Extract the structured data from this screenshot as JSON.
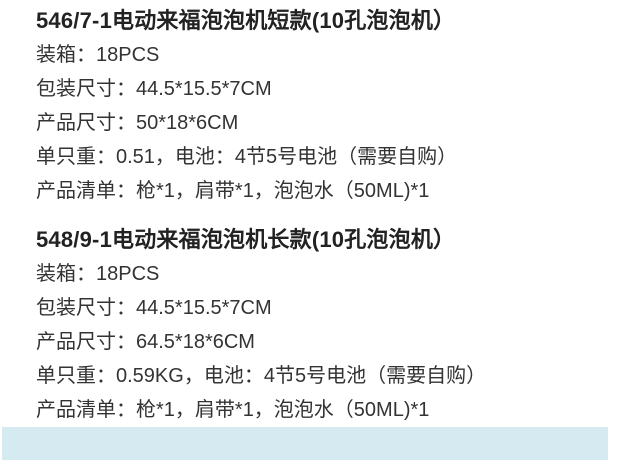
{
  "page": {
    "background_color": "#ffffff",
    "text_color": "#333333",
    "title_color": "#222222",
    "highlight_bar_color": "#d5ebf1"
  },
  "styles": {
    "bar": "background-color:#d5ebf1"
  },
  "products": [
    {
      "title": "546/7-1电动来福泡泡机短款(10孔泡泡机）",
      "specs": [
        "装箱：18PCS",
        "包装尺寸：44.5*15.5*7CM",
        "产品尺寸：50*18*6CM",
        "单只重：0.51，电池：4节5号电池（需要自购）",
        "产品清单：枪*1，肩带*1，泡泡水（50ML)*1"
      ]
    },
    {
      "title": "548/9-1电动来福泡泡机长款(10孔泡泡机）",
      "specs": [
        "装箱：18PCS",
        "包装尺寸：44.5*15.5*7CM",
        "产品尺寸：64.5*18*6CM",
        "单只重：0.59KG，电池：4节5号电池（需要自购）",
        "产品清单：枪*1，肩带*1，泡泡水（50ML)*1"
      ]
    }
  ]
}
